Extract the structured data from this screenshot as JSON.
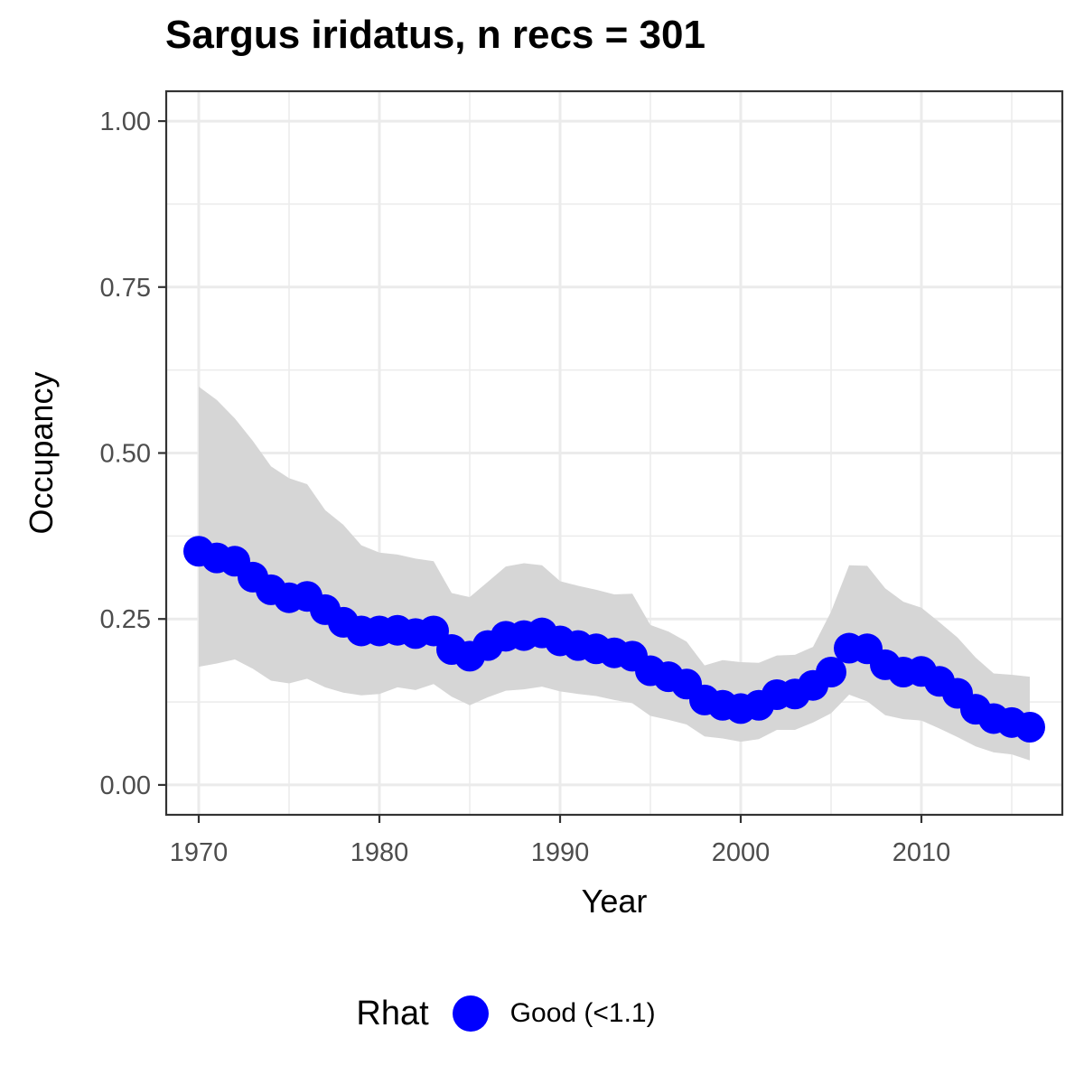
{
  "chart_data": {
    "type": "line",
    "title": "Sargus iridatus, n recs = 301",
    "xlabel": "Year",
    "ylabel": "Occupancy",
    "xlim": [
      1968.2,
      2017.8
    ],
    "ylim": [
      -0.045,
      1.045
    ],
    "x_ticks": [
      1970,
      1980,
      1990,
      2000,
      2010
    ],
    "x_tick_labels": [
      "1970",
      "1980",
      "1990",
      "2000",
      "2010"
    ],
    "y_ticks": [
      0,
      0.25,
      0.5,
      0.75,
      1.0
    ],
    "y_tick_labels": [
      "0.00",
      "0.25",
      "0.50",
      "0.75",
      "1.00"
    ],
    "grid": true,
    "legend_position": "bottom",
    "legend": {
      "title": "Rhat",
      "label": "Good (<1.1)",
      "color": "#0000ff"
    },
    "colors": {
      "points": "#0000ff",
      "ribbon": "#d6d6d6",
      "grid": "#ebebeb",
      "border": "#333333"
    },
    "series": [
      {
        "x": [
          1970,
          1971,
          1972,
          1973,
          1974,
          1975,
          1976,
          1977,
          1978,
          1979,
          1980,
          1981,
          1982,
          1983,
          1984,
          1985,
          1986,
          1987,
          1988,
          1989,
          1990,
          1991,
          1992,
          1993,
          1994,
          1995,
          1996,
          1997,
          1998,
          1999,
          2000,
          2001,
          2002,
          2003,
          2004,
          2005,
          2006,
          2007,
          2008,
          2009,
          2010,
          2011,
          2012,
          2013,
          2014,
          2015,
          2016
        ],
        "values": [
          0.352,
          0.342,
          0.337,
          0.313,
          0.294,
          0.282,
          0.284,
          0.264,
          0.245,
          0.232,
          0.232,
          0.233,
          0.228,
          0.232,
          0.204,
          0.194,
          0.21,
          0.224,
          0.225,
          0.229,
          0.217,
          0.21,
          0.205,
          0.199,
          0.194,
          0.172,
          0.163,
          0.152,
          0.128,
          0.12,
          0.115,
          0.12,
          0.136,
          0.137,
          0.15,
          0.17,
          0.206,
          0.205,
          0.181,
          0.17,
          0.171,
          0.156,
          0.138,
          0.114,
          0.1,
          0.094,
          0.087
        ],
        "lower": [
          0.178,
          0.183,
          0.189,
          0.175,
          0.157,
          0.153,
          0.16,
          0.147,
          0.139,
          0.135,
          0.137,
          0.147,
          0.143,
          0.152,
          0.133,
          0.12,
          0.132,
          0.142,
          0.144,
          0.148,
          0.141,
          0.137,
          0.134,
          0.128,
          0.123,
          0.104,
          0.098,
          0.091,
          0.073,
          0.07,
          0.065,
          0.069,
          0.083,
          0.083,
          0.094,
          0.108,
          0.136,
          0.126,
          0.105,
          0.099,
          0.097,
          0.085,
          0.072,
          0.058,
          0.049,
          0.046,
          0.037
        ],
        "upper": [
          0.6,
          0.58,
          0.552,
          0.518,
          0.48,
          0.462,
          0.453,
          0.414,
          0.392,
          0.361,
          0.35,
          0.347,
          0.341,
          0.337,
          0.289,
          0.283,
          0.306,
          0.329,
          0.334,
          0.331,
          0.307,
          0.3,
          0.294,
          0.287,
          0.288,
          0.241,
          0.231,
          0.216,
          0.18,
          0.188,
          0.185,
          0.184,
          0.195,
          0.196,
          0.208,
          0.261,
          0.331,
          0.33,
          0.296,
          0.276,
          0.267,
          0.245,
          0.222,
          0.192,
          0.168,
          0.166,
          0.163
        ]
      }
    ]
  }
}
